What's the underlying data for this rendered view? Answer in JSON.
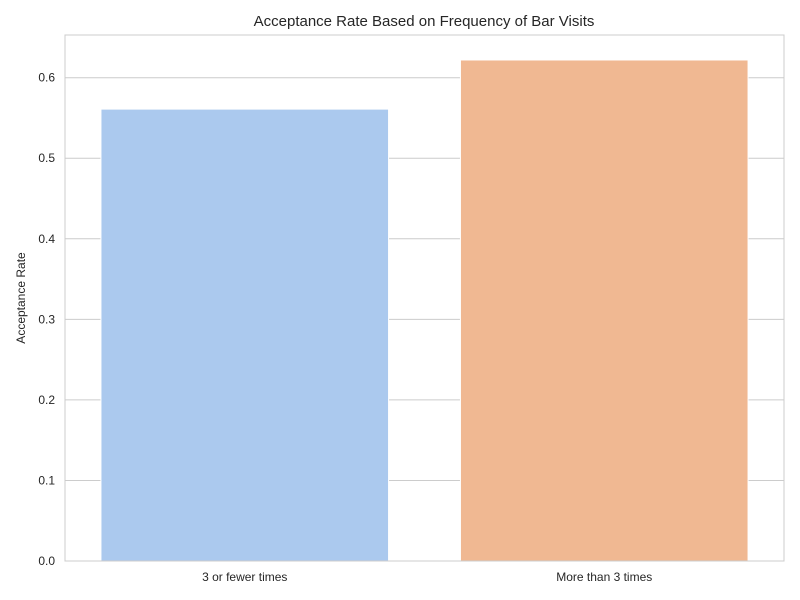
{
  "chart_data": {
    "type": "bar",
    "title": "Acceptance Rate Based on Frequency of Bar Visits",
    "xlabel": "",
    "ylabel": "Acceptance Rate",
    "categories": [
      "3 or fewer times",
      "More than 3 times"
    ],
    "values": [
      0.561,
      0.622
    ],
    "colors": [
      "#abc9ee",
      "#f0b892"
    ],
    "ylim": [
      0,
      0.653
    ],
    "yticks": [
      0.0,
      0.1,
      0.2,
      0.3,
      0.4,
      0.5,
      0.6
    ],
    "ytick_labels": [
      "0.0",
      "0.1",
      "0.2",
      "0.3",
      "0.4",
      "0.5",
      "0.6"
    ],
    "grid": true
  }
}
